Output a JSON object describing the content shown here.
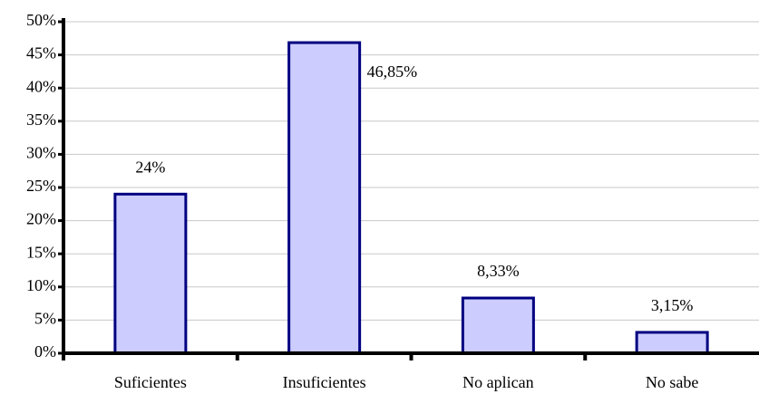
{
  "chart_data": {
    "type": "bar",
    "categories": [
      "Suficientes",
      "Insuficientes",
      "No aplican",
      "No sabe"
    ],
    "values": [
      24,
      46.85,
      8.33,
      3.15
    ],
    "value_labels": [
      "24%",
      "46,85%",
      "8,33%",
      "3,15%"
    ],
    "color": "#ccccff",
    "edge_color": "#000080",
    "ylim": [
      0,
      50
    ],
    "yticks": [
      {
        "value": 0,
        "label": "0%"
      },
      {
        "value": 5,
        "label": "5%"
      },
      {
        "value": 10,
        "label": "10%"
      },
      {
        "value": 15,
        "label": "15%"
      },
      {
        "value": 20,
        "label": "20%"
      },
      {
        "value": 25,
        "label": "25%"
      },
      {
        "value": 30,
        "label": "30%"
      },
      {
        "value": 35,
        "label": "35%"
      },
      {
        "value": 40,
        "label": "40%"
      },
      {
        "value": 45,
        "label": "45%"
      },
      {
        "value": 50,
        "label": "50%"
      }
    ],
    "grid": true
  }
}
